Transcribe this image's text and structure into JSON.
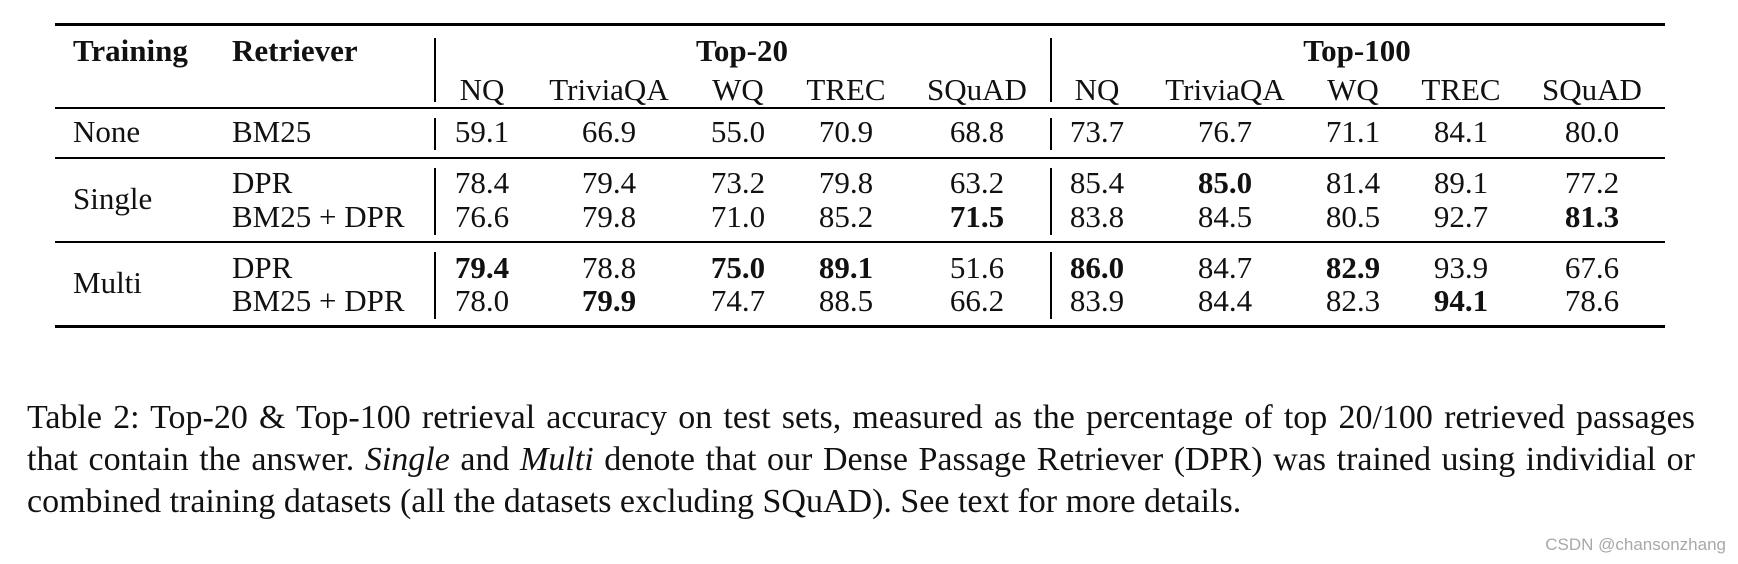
{
  "table": {
    "headers": {
      "training": "Training",
      "retriever": "Retriever",
      "group_top20": "Top-20",
      "group_top100": "Top-100",
      "datasets": [
        "NQ",
        "TriviaQA",
        "WQ",
        "TREC",
        "SQuAD"
      ]
    },
    "rows": [
      {
        "training": "None",
        "retriever": "BM25",
        "top20": [
          "59.1",
          "66.9",
          "55.0",
          "70.9",
          "68.8"
        ],
        "top100": [
          "73.7",
          "76.7",
          "71.1",
          "84.1",
          "80.0"
        ],
        "bold_top20": [
          false,
          false,
          false,
          false,
          false
        ],
        "bold_top100": [
          false,
          false,
          false,
          false,
          false
        ]
      },
      {
        "training": "Single",
        "retriever": "DPR",
        "top20": [
          "78.4",
          "79.4",
          "73.2",
          "79.8",
          "63.2"
        ],
        "top100": [
          "85.4",
          "85.0",
          "81.4",
          "89.1",
          "77.2"
        ],
        "bold_top20": [
          false,
          false,
          false,
          false,
          false
        ],
        "bold_top100": [
          false,
          true,
          false,
          false,
          false
        ]
      },
      {
        "training": "",
        "retriever": "BM25 + DPR",
        "top20": [
          "76.6",
          "79.8",
          "71.0",
          "85.2",
          "71.5"
        ],
        "top100": [
          "83.8",
          "84.5",
          "80.5",
          "92.7",
          "81.3"
        ],
        "bold_top20": [
          false,
          false,
          false,
          false,
          true
        ],
        "bold_top100": [
          false,
          false,
          false,
          false,
          true
        ]
      },
      {
        "training": "Multi",
        "retriever": "DPR",
        "top20": [
          "79.4",
          "78.8",
          "75.0",
          "89.1",
          "51.6"
        ],
        "top100": [
          "86.0",
          "84.7",
          "82.9",
          "93.9",
          "67.6"
        ],
        "bold_top20": [
          true,
          false,
          true,
          true,
          false
        ],
        "bold_top100": [
          true,
          false,
          true,
          false,
          false
        ]
      },
      {
        "training": "",
        "retriever": "BM25 + DPR",
        "top20": [
          "78.0",
          "79.9",
          "74.7",
          "88.5",
          "66.2"
        ],
        "top100": [
          "83.9",
          "84.4",
          "82.3",
          "94.1",
          "78.6"
        ],
        "bold_top20": [
          false,
          true,
          false,
          false,
          false
        ],
        "bold_top100": [
          false,
          false,
          false,
          true,
          false
        ]
      }
    ]
  },
  "caption": {
    "part1": "Table 2:  Top-20 & Top-100 retrieval accuracy on test sets, measured as the percentage of top 20/100 retrieved passages that contain the answer. ",
    "single": "Single",
    "part2": " and ",
    "multi": "Multi",
    "part3": " denote that our Dense Passage Retriever (DPR) was trained using individial or combined training datasets (all the datasets excluding SQuAD). See text for more details."
  },
  "watermark": "CSDN @chansonzhang"
}
